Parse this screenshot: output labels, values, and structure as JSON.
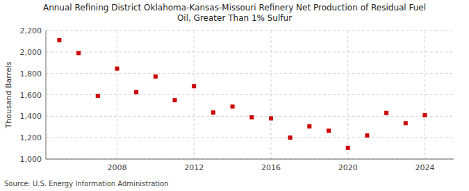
{
  "chart_data": {
    "type": "scatter",
    "title": "Annual Refining District Oklahoma-Kansas-Missouri Refinery Net Production of Residual Fuel\nOil, Greater Than 1% Sulfur",
    "y_label": "Thousand Barrels",
    "source": "Source: U.S. Energy Information Administration",
    "color": "#cc0000",
    "marker": "square",
    "grid": true,
    "x": [
      2005,
      2006,
      2007,
      2008,
      2009,
      2010,
      2011,
      2012,
      2013,
      2014,
      2015,
      2016,
      2017,
      2018,
      2019,
      2020,
      2021,
      2022,
      2023,
      2024
    ],
    "values": [
      2110,
      1990,
      1590,
      1845,
      1625,
      1770,
      1550,
      1680,
      1435,
      1490,
      1390,
      1380,
      1200,
      1305,
      1265,
      1105,
      1220,
      1430,
      1335,
      1410
    ],
    "xlim": [
      2004.3,
      2025.5
    ],
    "xticks": [
      2008,
      2012,
      2016,
      2020,
      2024
    ],
    "ylim": [
      1000,
      2200
    ],
    "yticks": [
      {
        "value": 1000,
        "label": "1,000"
      },
      {
        "value": 1200,
        "label": "1,200"
      },
      {
        "value": 1400,
        "label": "1,400"
      },
      {
        "value": 1600,
        "label": "1,600"
      },
      {
        "value": 1800,
        "label": "1,800"
      },
      {
        "value": 2000,
        "label": "2,000"
      },
      {
        "value": 2200,
        "label": "2,200"
      }
    ]
  }
}
